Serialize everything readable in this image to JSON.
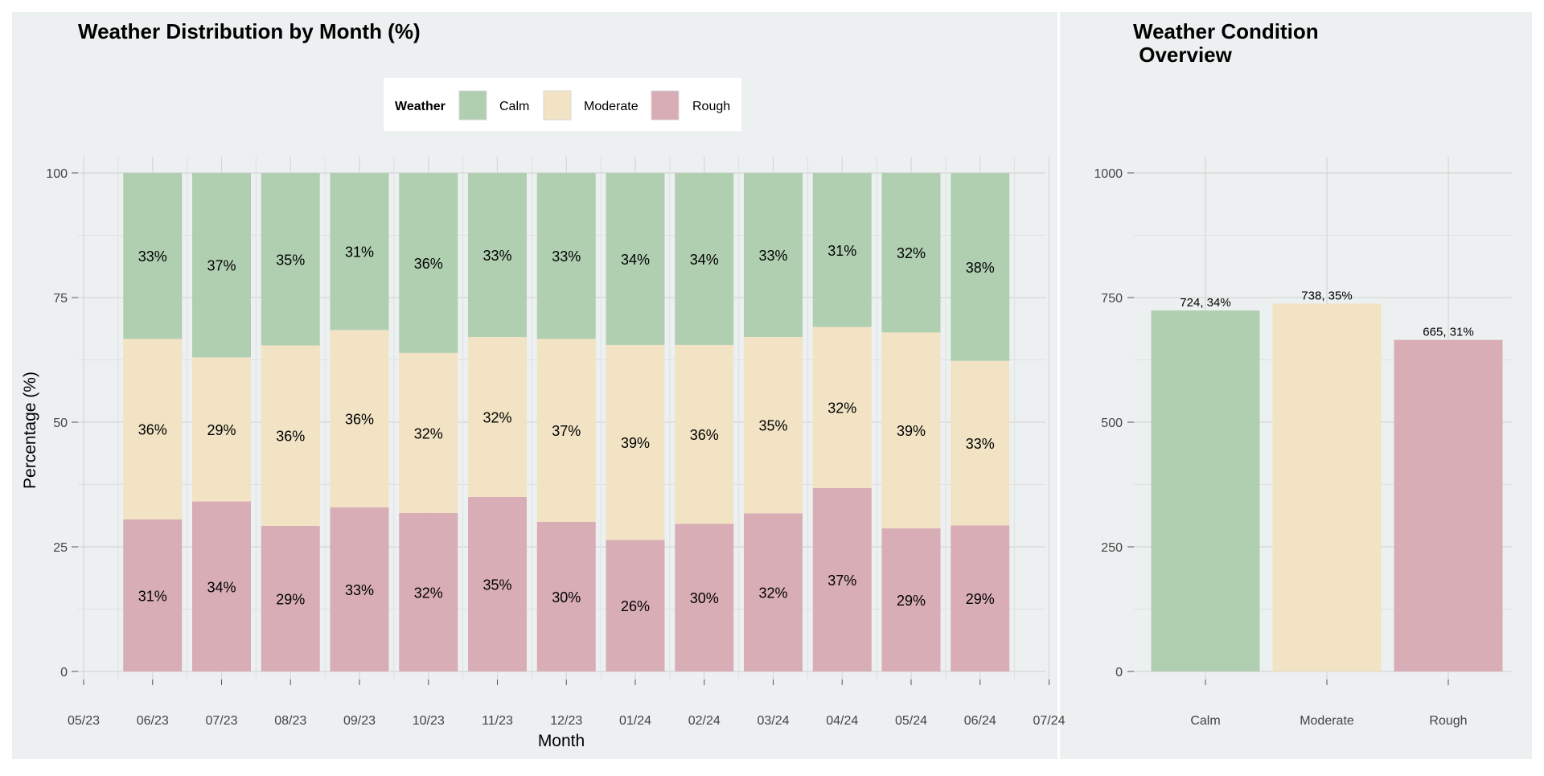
{
  "colors": {
    "Calm": "#b0cfb1",
    "Moderate": "#f1e3c3",
    "Rough": "#d8adb5",
    "panel_bg": "#ecf0f1",
    "grid": "#d6d6d6",
    "text": "#000000",
    "tick_text": "#444444"
  },
  "chart_data": [
    {
      "type": "bar",
      "stacked": true,
      "title": "Weather Distribution by Month (%)",
      "xlabel": "Month",
      "ylabel": "Percentage (%)",
      "ylim": [
        0,
        100
      ],
      "yticks": [
        "0",
        "25",
        "50",
        "75",
        "100"
      ],
      "xticks": [
        "05/23",
        "06/23",
        "07/23",
        "08/23",
        "09/23",
        "10/23",
        "11/23",
        "12/23",
        "01/24",
        "02/24",
        "03/24",
        "04/24",
        "05/24",
        "06/24",
        "07/24"
      ],
      "categories": [
        "06/23",
        "07/23",
        "08/23",
        "09/23",
        "10/23",
        "11/23",
        "12/23",
        "01/24",
        "02/24",
        "03/24",
        "04/24",
        "05/24",
        "06/24"
      ],
      "legend": {
        "title": "Weather",
        "position": "top",
        "items": [
          "Calm",
          "Moderate",
          "Rough"
        ]
      },
      "grid": true,
      "series": [
        {
          "name": "Rough",
          "values": [
            30.5,
            34.1,
            29.2,
            32.9,
            31.8,
            35.0,
            30.0,
            26.4,
            29.6,
            31.7,
            36.8,
            28.7,
            29.3
          ],
          "labels": [
            "31%",
            "34%",
            "29%",
            "33%",
            "32%",
            "35%",
            "30%",
            "26%",
            "30%",
            "32%",
            "37%",
            "29%",
            "29%"
          ]
        },
        {
          "name": "Moderate",
          "values": [
            36.2,
            28.9,
            36.2,
            35.6,
            32.1,
            32.1,
            36.7,
            39.1,
            35.9,
            35.4,
            32.3,
            39.3,
            33.0
          ],
          "labels": [
            "36%",
            "29%",
            "36%",
            "36%",
            "32%",
            "32%",
            "37%",
            "39%",
            "36%",
            "35%",
            "32%",
            "39%",
            "33%"
          ]
        },
        {
          "name": "Calm",
          "values": [
            33.3,
            37.0,
            34.6,
            31.5,
            36.1,
            32.9,
            33.3,
            34.5,
            34.5,
            32.9,
            30.9,
            32.0,
            37.7
          ],
          "labels": [
            "33%",
            "37%",
            "35%",
            "31%",
            "36%",
            "33%",
            "33%",
            "34%",
            "34%",
            "33%",
            "31%",
            "32%",
            "38%"
          ]
        }
      ]
    },
    {
      "type": "bar",
      "title": "Weather Condition\n Overview",
      "title_lines": [
        "Weather Condition",
        " Overview"
      ],
      "categories": [
        "Calm",
        "Moderate",
        "Rough"
      ],
      "values": [
        724,
        738,
        665
      ],
      "labels": [
        "724, 34%",
        "738, 35%",
        "665, 31%"
      ],
      "ylim": [
        0,
        1050
      ],
      "yticks": [
        "0",
        "250",
        "500",
        "750",
        "1000"
      ],
      "grid": true
    }
  ]
}
